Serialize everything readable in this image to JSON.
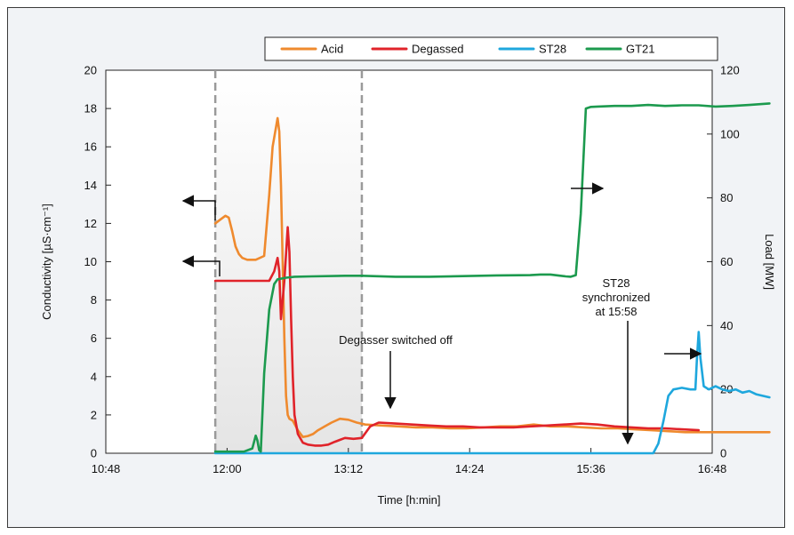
{
  "chart_data": {
    "type": "line",
    "xlabel": "Time [h:min]",
    "ylabel_left": "Conductivity [µS·cm⁻¹]",
    "ylabel_right": "Load [MW]",
    "x_ticks": [
      "10:48",
      "12:00",
      "13:12",
      "14:24",
      "15:36",
      "16:48"
    ],
    "xlim_min": [
      648,
      1008
    ],
    "ylim_left": [
      0,
      20
    ],
    "ylim_right": [
      0,
      120
    ],
    "y_ticks_left": [
      0,
      2,
      4,
      6,
      8,
      10,
      12,
      14,
      16,
      18,
      20
    ],
    "y_ticks_right": [
      0,
      20,
      40,
      60,
      80,
      100,
      120
    ],
    "legend_position": "top-right",
    "grid": false,
    "shaded_region_min": [
      713,
      800
    ],
    "dashed_lines_min": [
      713,
      800
    ],
    "series": [
      {
        "name": "Acid",
        "color": "#ef8a2e",
        "axis": "left",
        "x": [
          713,
          716,
          719,
          721,
          723,
          725,
          727,
          729,
          732,
          737,
          742,
          745,
          747,
          750,
          751,
          752,
          753,
          754,
          755,
          756,
          757,
          759,
          762,
          765,
          768,
          771,
          774,
          778,
          782,
          787,
          792,
          797,
          802,
          812,
          822,
          832,
          842,
          852,
          862,
          872,
          882,
          892,
          902,
          912,
          922,
          932,
          942,
          952,
          962,
          972,
          982,
          992,
          1002,
          1012,
          1022,
          1032,
          1042
        ],
        "y": [
          12.0,
          12.2,
          12.4,
          12.3,
          11.6,
          10.8,
          10.4,
          10.2,
          10.1,
          10.1,
          10.3,
          13.5,
          16.0,
          17.5,
          16.8,
          14.0,
          10.0,
          6.0,
          3.0,
          2.0,
          1.8,
          1.7,
          1.2,
          0.85,
          0.9,
          1.0,
          1.2,
          1.4,
          1.6,
          1.8,
          1.75,
          1.6,
          1.5,
          1.45,
          1.4,
          1.35,
          1.35,
          1.3,
          1.3,
          1.35,
          1.4,
          1.4,
          1.5,
          1.4,
          1.4,
          1.35,
          1.3,
          1.3,
          1.25,
          1.2,
          1.15,
          1.1,
          1.1,
          1.1,
          1.1,
          1.1,
          1.1
        ]
      },
      {
        "name": "Degassed",
        "color": "#e0232a",
        "axis": "left",
        "x": [
          713,
          720,
          730,
          740,
          745,
          748,
          750,
          751,
          752,
          754,
          756,
          757,
          758,
          759,
          760,
          762,
          765,
          768,
          772,
          776,
          780,
          784,
          790,
          795,
          800,
          805,
          810,
          820,
          830,
          840,
          850,
          860,
          870,
          880,
          890,
          900,
          910,
          920,
          930,
          940,
          950,
          960,
          970,
          980,
          990,
          1000
        ],
        "y": [
          9.0,
          9.0,
          9.0,
          9.0,
          9.0,
          9.5,
          10.2,
          9.5,
          7.0,
          9.0,
          11.8,
          10.5,
          7.0,
          4.0,
          2.0,
          1.0,
          0.55,
          0.45,
          0.4,
          0.4,
          0.45,
          0.6,
          0.8,
          0.75,
          0.8,
          1.4,
          1.6,
          1.55,
          1.5,
          1.45,
          1.4,
          1.4,
          1.35,
          1.35,
          1.35,
          1.4,
          1.45,
          1.5,
          1.55,
          1.5,
          1.4,
          1.35,
          1.3,
          1.3,
          1.25,
          1.2
        ]
      },
      {
        "name": "ST28",
        "color": "#1ea7dd",
        "axis": "right",
        "x": [
          713,
          760,
          800,
          850,
          900,
          950,
          973,
          976,
          979,
          982,
          985,
          990,
          995,
          998,
          999,
          1000,
          1001,
          1003,
          1006,
          1010,
          1014,
          1018,
          1022,
          1026,
          1030,
          1034,
          1038,
          1042
        ],
        "y": [
          0,
          0,
          0,
          0,
          0,
          0,
          0,
          3,
          10,
          18,
          20,
          20.5,
          20,
          20,
          30,
          38,
          30,
          21,
          20,
          21,
          20,
          19.5,
          20,
          19,
          19.5,
          18.5,
          18,
          17.5
        ]
      },
      {
        "name": "GT21",
        "color": "#1c9a4e",
        "axis": "right",
        "x": [
          713,
          720,
          730,
          735,
          737,
          738,
          739,
          740,
          742,
          745,
          748,
          750,
          755,
          760,
          770,
          790,
          800,
          820,
          840,
          860,
          880,
          900,
          906,
          912,
          918,
          921,
          924,
          927,
          930,
          933,
          936,
          940,
          950,
          960,
          970,
          980,
          990,
          1000,
          1010,
          1020,
          1030,
          1042
        ],
        "y": [
          0.5,
          0.5,
          0.5,
          1.5,
          5.5,
          4.0,
          1.0,
          0.5,
          25,
          45,
          53,
          54.5,
          55,
          55.3,
          55.4,
          55.6,
          55.6,
          55.3,
          55.3,
          55.5,
          55.7,
          55.8,
          56,
          56,
          55.6,
          55.4,
          55.3,
          55.8,
          75,
          108,
          108.5,
          108.6,
          108.8,
          108.8,
          109.1,
          108.8,
          109.0,
          109.0,
          108.6,
          108.8,
          109.1,
          109.6
        ]
      }
    ],
    "annotations": {
      "degasser": "Degasser switched off",
      "st28_line1": "ST28",
      "st28_line2": "synchronized",
      "st28_line3": "at 15:58"
    }
  }
}
